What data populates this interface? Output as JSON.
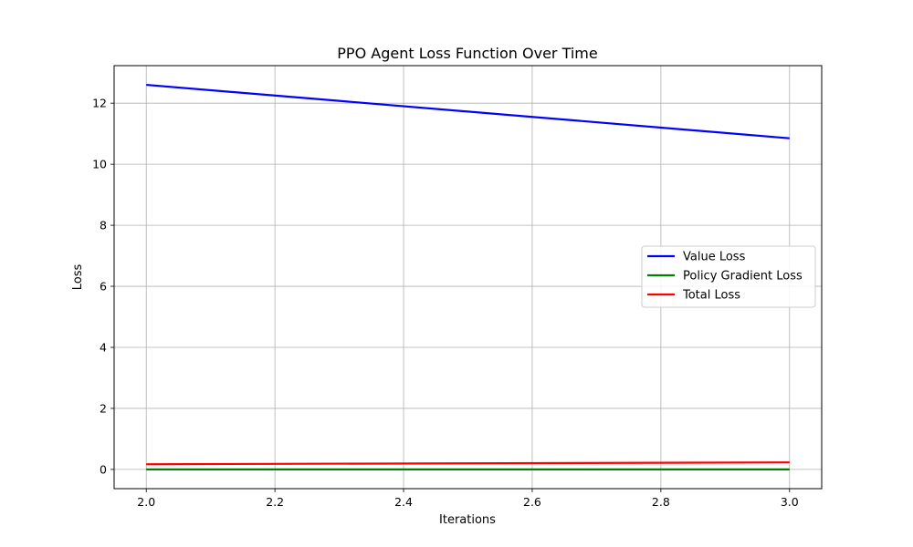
{
  "chart_data": {
    "type": "line",
    "title": "PPO Agent Loss Function Over Time",
    "xlabel": "Iterations",
    "ylabel": "Loss",
    "x": [
      2.0,
      3.0
    ],
    "xlim": [
      1.95,
      3.05
    ],
    "ylim": [
      -0.63,
      13.23
    ],
    "xticks": [
      "2.0",
      "2.2",
      "2.4",
      "2.6",
      "2.8",
      "3.0"
    ],
    "yticks": [
      "0",
      "2",
      "4",
      "6",
      "8",
      "10",
      "12"
    ],
    "grid": true,
    "legend_position": "center-right",
    "series": [
      {
        "name": "Value Loss",
        "color": "#0000ff",
        "values": [
          12.6,
          10.85
        ]
      },
      {
        "name": "Policy Gradient Loss",
        "color": "#008000",
        "values": [
          0.0,
          0.0
        ]
      },
      {
        "name": "Total Loss",
        "color": "#ff0000",
        "values": [
          0.17,
          0.23
        ]
      }
    ]
  }
}
